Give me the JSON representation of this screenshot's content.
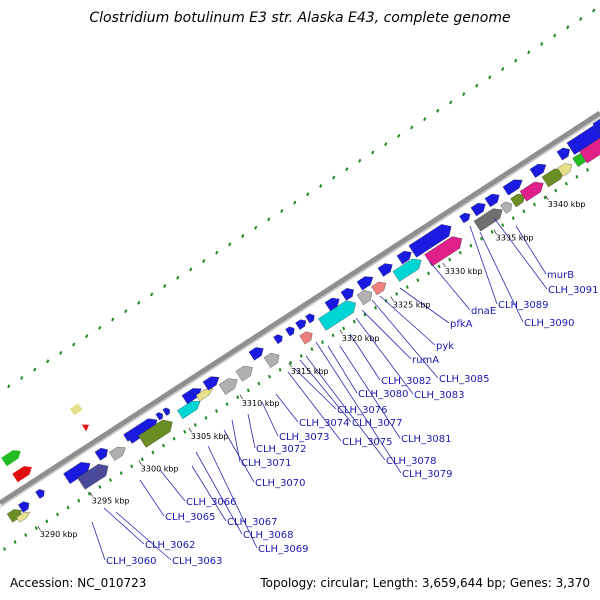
{
  "title": "Clostridium botulinum E3 str. Alaska E43, complete genome",
  "accession": "Accession: NC_010723",
  "topology": "Topology: circular; Length: 3,659,644 bp; Genes: 3,370",
  "colors": {
    "background": "#ffffff",
    "backbone": "#8c8c8c",
    "tick_dots": "#1f8a1f",
    "gene_blue": "#1a1ae0",
    "label_blue": "#1a1ab0",
    "olive": "#6b8e23",
    "cyan": "#00d5d5",
    "magenta": "#e0208a",
    "grey": "#b0b0b0",
    "darkgrey": "#707070",
    "khaki": "#e6e08a",
    "salmon": "#f08080",
    "navy": "#4a4a9a",
    "green": "#22bb22",
    "red": "#e01010"
  },
  "ticks": [
    "3290 kbp",
    "3295 kbp",
    "3300 kbp",
    "3305 kbp",
    "3310 kbp",
    "3315 kbp",
    "3320 kbp",
    "3325 kbp",
    "3330 kbp",
    "3335 kbp",
    "3340 kbp"
  ],
  "gene_labels": [
    "CLH_3060",
    "CLH_3062",
    "CLH_3063",
    "CLH_3065",
    "CLH_3066",
    "CLH_3067",
    "CLH_3068",
    "CLH_3069",
    "CLH_3070",
    "CLH_3071",
    "CLH_3072",
    "CLH_3073",
    "CLH_3074",
    "CLH_3075",
    "CLH_3076",
    "CLH_3077",
    "CLH_3078",
    "CLH_3079",
    "CLH_3080",
    "CLH_3081",
    "CLH_3082",
    "CLH_3083",
    "rumA",
    "CLH_3085",
    "pyk",
    "pfkA",
    "dnaE",
    "CLH_3089",
    "CLH_3090",
    "CLH_3091",
    "murB"
  ]
}
